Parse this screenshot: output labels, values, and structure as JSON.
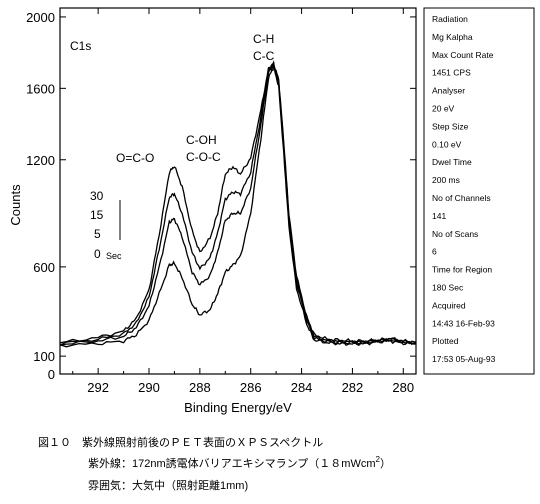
{
  "chart_data": {
    "type": "line",
    "xlabel": "Binding Energy/eV",
    "ylabel": "Counts",
    "xlim": [
      293.5,
      279.5
    ],
    "ylim": [
      0,
      2050
    ],
    "x_ticks": [
      292,
      290,
      288,
      286,
      284,
      282,
      280
    ],
    "y_ticks": [
      0,
      100,
      600,
      1200,
      1600,
      2000
    ],
    "panel_label": "C1s",
    "peak_labels": [
      "O=C-O",
      "C-OH",
      "C-O-C",
      "C-H",
      "C-C"
    ],
    "time_legend": {
      "values": [
        "30",
        "15",
        "5",
        "0"
      ],
      "unit": "Sec"
    },
    "series": [
      {
        "name": "30",
        "x": [
          293.5,
          292,
          291,
          290.5,
          290,
          289.6,
          289.2,
          289,
          288.7,
          288.3,
          288,
          287.6,
          287.3,
          287,
          286.7,
          286.4,
          286,
          285.6,
          285.3,
          285.1,
          284.9,
          284.7,
          284.5,
          284.2,
          283.8,
          283.5,
          283,
          282.5,
          282,
          281.5,
          281,
          280.5,
          280,
          279.5
        ],
        "y": [
          175,
          205,
          240,
          310,
          470,
          780,
          1130,
          1165,
          1050,
          800,
          680,
          760,
          900,
          1120,
          1160,
          1120,
          1210,
          1480,
          1710,
          1740,
          1650,
          1300,
          900,
          550,
          320,
          220,
          195,
          190,
          185,
          185,
          190,
          200,
          185,
          180
        ]
      },
      {
        "name": "15",
        "x": [
          293.5,
          292,
          291,
          290.5,
          290,
          289.6,
          289.2,
          289,
          288.7,
          288.3,
          288,
          287.6,
          287.3,
          287,
          286.7,
          286.4,
          286,
          285.6,
          285.3,
          285.1,
          284.9,
          284.7,
          284.5,
          284.2,
          283.8,
          283.5,
          283,
          282.5,
          282,
          281.5,
          281,
          280.5,
          280,
          279.5
        ],
        "y": [
          170,
          195,
          225,
          285,
          430,
          700,
          990,
          1010,
          900,
          680,
          590,
          650,
          790,
          980,
          1020,
          1010,
          1130,
          1440,
          1700,
          1735,
          1640,
          1280,
          880,
          530,
          310,
          210,
          188,
          182,
          180,
          180,
          188,
          195,
          182,
          175
        ]
      },
      {
        "name": "5",
        "x": [
          293.5,
          292,
          291,
          290.5,
          290,
          289.6,
          289.2,
          289,
          288.7,
          288.3,
          288,
          287.6,
          287.3,
          287,
          286.7,
          286.4,
          286,
          285.6,
          285.3,
          285.1,
          284.9,
          284.7,
          284.5,
          284.2,
          283.8,
          283.5,
          283,
          282.5,
          282,
          281.5,
          281,
          280.5,
          280,
          279.5
        ],
        "y": [
          165,
          185,
          210,
          260,
          380,
          600,
          850,
          870,
          770,
          570,
          500,
          550,
          680,
          860,
          900,
          900,
          1040,
          1400,
          1690,
          1730,
          1630,
          1260,
          860,
          510,
          300,
          200,
          182,
          176,
          175,
          175,
          185,
          190,
          178,
          172
        ]
      },
      {
        "name": "0",
        "x": [
          293.5,
          292,
          291,
          290.5,
          290,
          289.6,
          289.2,
          289,
          288.7,
          288.3,
          288,
          287.6,
          287.3,
          287,
          286.7,
          286.4,
          286,
          285.6,
          285.3,
          285.1,
          284.9,
          284.7,
          284.5,
          284.2,
          283.8,
          283.5,
          283,
          282.5,
          282,
          281.5,
          281,
          280.5,
          280,
          279.5
        ],
        "y": [
          160,
          170,
          185,
          220,
          300,
          450,
          610,
          620,
          540,
          390,
          330,
          360,
          450,
          570,
          610,
          660,
          900,
          1320,
          1660,
          1720,
          1610,
          1230,
          830,
          480,
          280,
          190,
          175,
          170,
          168,
          170,
          180,
          185,
          172,
          168
        ]
      }
    ]
  },
  "info_panel": [
    "Radiation",
    "Mg Kalpha",
    "Max Count Rate",
    "1451 CPS",
    "Analyser",
    "20 eV",
    "Step Size",
    "0.10 eV",
    "Dwel Time",
    "200 ms",
    "No of Channels",
    "141",
    "No of Scans",
    "6",
    "Time for Region",
    "180 Sec",
    "Acquired",
    "14:43 16-Feb-93",
    "Plotted",
    "17:53 05-Aug-93"
  ],
  "caption": {
    "line1": "図１０　紫外線照射前後のＰＥＴ表面のＸＰＳスペクトル",
    "line2": "紫外線：172nm誘電体バリアエキシマランプ（１８mWcm",
    "line2_sup": "2",
    "line2_end": "）",
    "line3": "雰囲気：大気中（照射距離1mm)"
  }
}
